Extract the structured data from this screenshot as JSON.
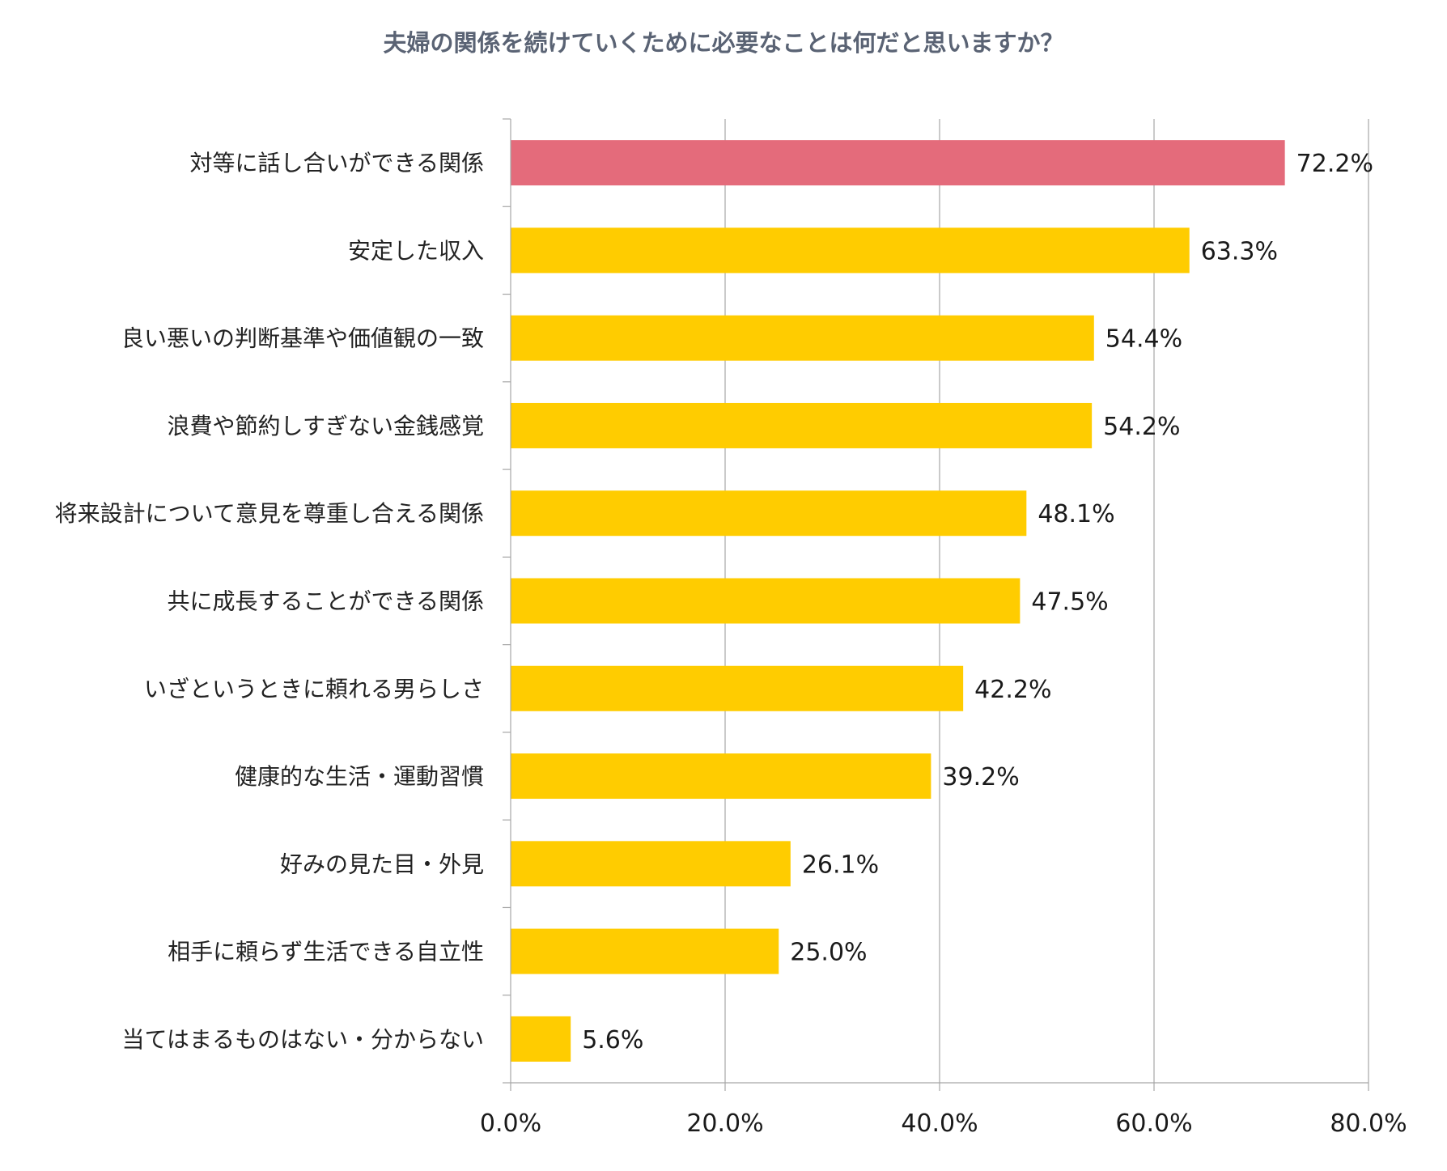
{
  "chart_data": {
    "type": "bar",
    "orientation": "horizontal",
    "title": "夫婦の関係を続けていくために必要なことは何だと思いますか？",
    "categories": [
      "対等に話し合いができる関係",
      "安定した収入",
      "良い悪いの判断基準や価値観の一致",
      "浪費や節約しすぎない金銭感覚",
      "将来設計について意見を尊重し合える関係",
      "共に成長することができる関係",
      "いざというときに頼れる男らしさ",
      "健康的な生活・運動習慣",
      "好みの見た目・外見",
      "相手に頼らず生活できる自立性",
      "当てはまるものはない・分からない"
    ],
    "values": [
      72.2,
      63.3,
      54.4,
      54.2,
      48.1,
      47.5,
      42.2,
      39.2,
      26.1,
      25.0,
      5.6
    ],
    "value_labels": [
      "72.2%",
      "63.3%",
      "54.4%",
      "54.2%",
      "48.1%",
      "47.5%",
      "42.2%",
      "39.2%",
      "26.1%",
      "25.0%",
      "5.6%"
    ],
    "xlim": [
      0,
      80
    ],
    "xticks": [
      0,
      20,
      40,
      60,
      80
    ],
    "xtick_labels": [
      "0.0%",
      "20.0%",
      "40.0%",
      "60.0%",
      "80.0%"
    ],
    "grid": true,
    "highlight_index": 0,
    "colors": {
      "highlight": "#e46b7b",
      "bar": "#ffcc00",
      "grid": "#a6a6a6",
      "title": "#5a6374"
    }
  }
}
